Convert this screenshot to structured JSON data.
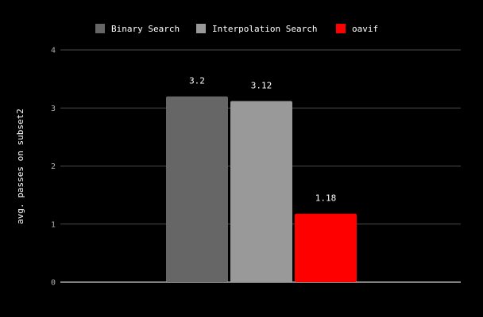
{
  "chart_data": {
    "type": "bar",
    "categories": [
      ""
    ],
    "series": [
      {
        "name": "Binary Search",
        "values": [
          3.2
        ],
        "color": "#666666"
      },
      {
        "name": "Interpolation Search",
        "values": [
          3.12
        ],
        "color": "#999999"
      },
      {
        "name": "oavif",
        "values": [
          1.18
        ],
        "color": "#ff0000"
      }
    ],
    "data_labels": [
      "3.2",
      "3.12",
      "1.18"
    ],
    "title": "",
    "xlabel": "",
    "ylabel": "avg. passes on subset2",
    "ylim": [
      0,
      4
    ],
    "yticks": [
      0,
      1,
      2,
      3,
      4
    ],
    "grid": true,
    "legend_position": "top-center",
    "background": "#000000"
  }
}
